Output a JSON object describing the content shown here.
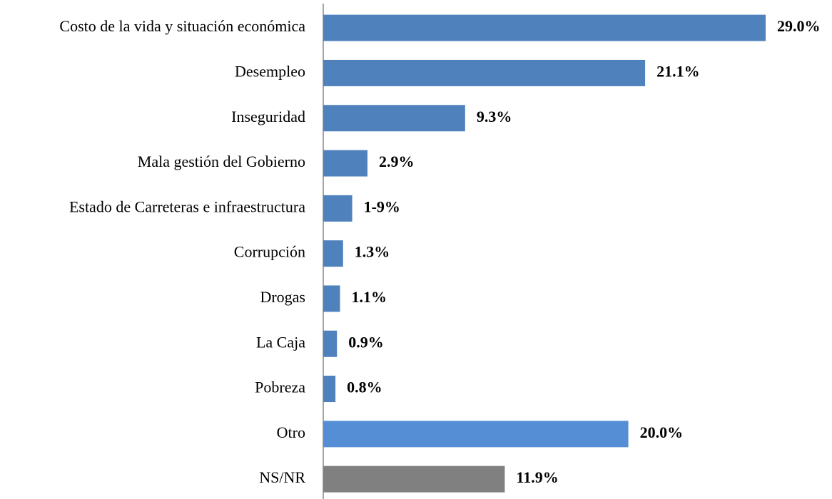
{
  "chart_data": {
    "type": "bar",
    "orientation": "horizontal",
    "categories": [
      "Costo de la vida y situación económica",
      "Desempleo",
      "Inseguridad",
      "Mala gestión del Gobierno",
      "Estado de Carreteras e infraestructura",
      "Corrupción",
      "Drogas",
      "La Caja",
      "Pobreza",
      "Otro",
      "NS/NR"
    ],
    "values": [
      29.0,
      21.1,
      9.3,
      2.9,
      1.9,
      1.3,
      1.1,
      0.9,
      0.8,
      20.0,
      11.9
    ],
    "value_labels": [
      "29.0%",
      "21.1%",
      "9.3%",
      "2.9%",
      "1-9%",
      "1.3%",
      "1.1%",
      "0.9%",
      "0.8%",
      "20.0%",
      "11.9%"
    ],
    "colors": [
      "#4f81bd",
      "#4f81bd",
      "#4f81bd",
      "#4f81bd",
      "#4f81bd",
      "#4f81bd",
      "#4f81bd",
      "#4f81bd",
      "#4f81bd",
      "#558ed5",
      "#808080"
    ]
  }
}
